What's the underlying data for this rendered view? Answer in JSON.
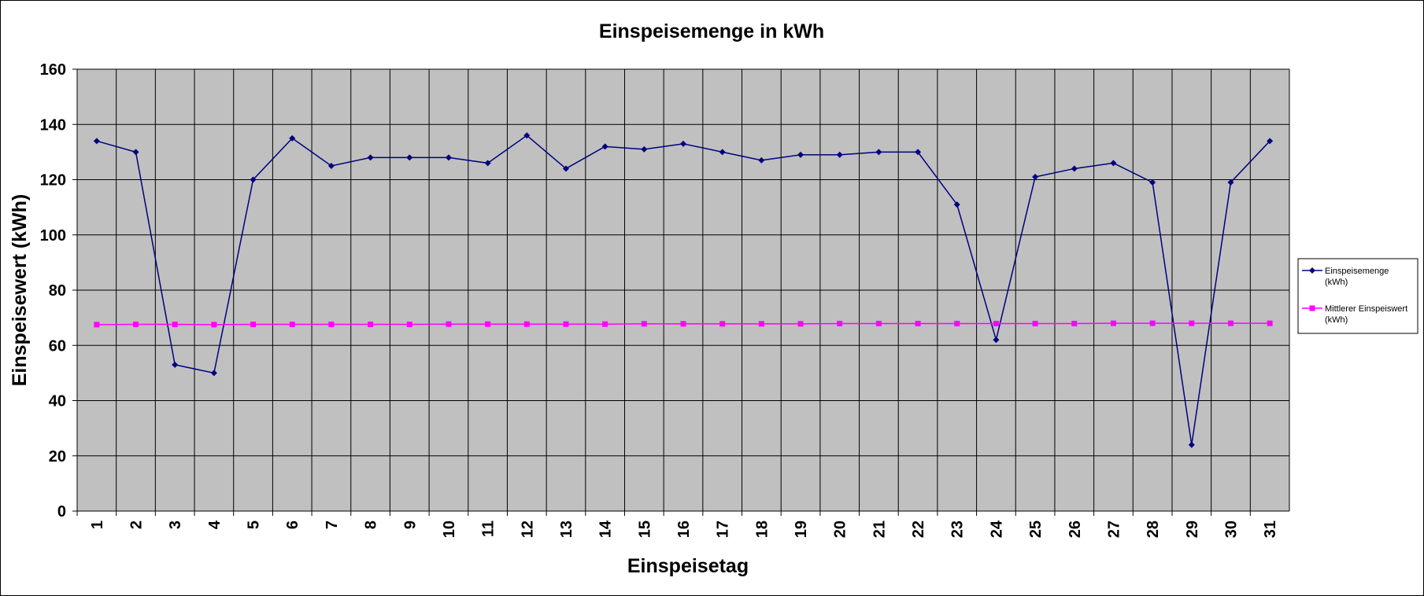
{
  "chart_data": {
    "type": "line",
    "title": "Einspeisemenge in kWh",
    "xlabel": "Einspeisetag",
    "ylabel": "Einspeisewert  (kWh)",
    "categories": [
      "1",
      "2",
      "3",
      "4",
      "5",
      "6",
      "7",
      "8",
      "9",
      "10",
      "11",
      "12",
      "13",
      "14",
      "15",
      "16",
      "17",
      "18",
      "19",
      "20",
      "21",
      "22",
      "23",
      "24",
      "25",
      "26",
      "27",
      "28",
      "29",
      "30",
      "31"
    ],
    "ylim": [
      0,
      160
    ],
    "yticks": [
      "0",
      "20",
      "40",
      "60",
      "80",
      "100",
      "120",
      "140",
      "160"
    ],
    "grid": true,
    "legend_position": "right",
    "plot_background": "#c0c0c0",
    "series": [
      {
        "name_lines": [
          "Einspeisemenge",
          "(kWh)"
        ],
        "color": "#000080",
        "marker": "diamond",
        "values": [
          134,
          130,
          53,
          50,
          120,
          135,
          125,
          128,
          128,
          128,
          126,
          136,
          124,
          132,
          131,
          133,
          130,
          127,
          129,
          129,
          130,
          130,
          111,
          62,
          121,
          124,
          126,
          119,
          24,
          119,
          134
        ]
      },
      {
        "name_lines": [
          "Mittlerer Einspeiswert",
          "(kWh)"
        ],
        "color": "#ff00ff",
        "marker": "square",
        "values": [
          67.5,
          67.6,
          67.6,
          67.5,
          67.6,
          67.6,
          67.6,
          67.6,
          67.6,
          67.7,
          67.7,
          67.7,
          67.7,
          67.7,
          67.8,
          67.8,
          67.8,
          67.8,
          67.8,
          67.9,
          67.9,
          67.9,
          67.9,
          67.9,
          67.9,
          67.9,
          68.0,
          68.0,
          68.0,
          68.0,
          68.0
        ]
      }
    ]
  }
}
